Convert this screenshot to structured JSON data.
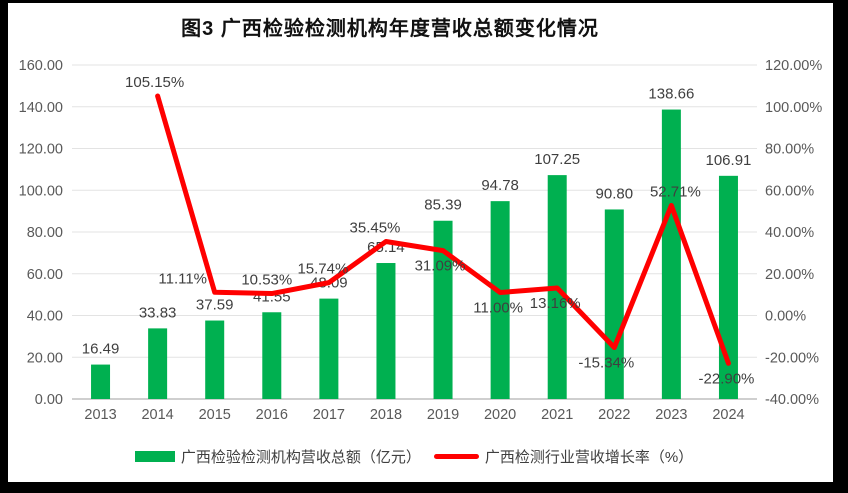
{
  "title": "图3 广西检验检测机构年度营收总额变化情况",
  "colors": {
    "bar": "#00B050",
    "line": "#FF0000",
    "grid": "#E3E3E3",
    "axis_line": "#BFBFBF",
    "tick_text": "#595959",
    "data_label": "#3F3F3F",
    "frame": "#000000",
    "background": "#FFFFFF"
  },
  "legend": {
    "items": [
      {
        "label": "广西检验检测机构营收总额（亿元）",
        "swatch": "bar"
      },
      {
        "label": "广西检测行业营收增长率（%）",
        "swatch": "line"
      }
    ]
  },
  "chart_data": {
    "type": "combo",
    "title": "图3 广西检验检测机构年度营收总额变化情况",
    "categories": [
      "2013",
      "2014",
      "2015",
      "2016",
      "2017",
      "2018",
      "2019",
      "2020",
      "2021",
      "2022",
      "2023",
      "2024"
    ],
    "series": [
      {
        "name": "广西检验检测机构营收总额（亿元）",
        "type": "bar",
        "axis": "left",
        "color": "#00B050",
        "values": [
          16.49,
          33.83,
          37.59,
          41.55,
          48.09,
          65.14,
          85.39,
          94.78,
          107.25,
          90.8,
          138.66,
          106.91
        ],
        "labels": [
          "16.49",
          "33.83",
          "37.59",
          "41.55",
          "48.09",
          "65.14",
          "85.39",
          "94.78",
          "107.25",
          "90.80",
          "138.66",
          "106.91"
        ]
      },
      {
        "name": "广西检测行业营收增长率（%）",
        "type": "line",
        "axis": "right",
        "color": "#FF0000",
        "values": [
          null,
          105.15,
          11.11,
          10.53,
          15.74,
          35.45,
          31.09,
          11.0,
          13.16,
          -15.34,
          52.71,
          -22.9
        ],
        "labels": [
          null,
          "105.15%",
          "11.11%",
          "10.53%",
          "15.74%",
          "35.45%",
          "31.09%",
          "11.00%",
          "13.16%",
          "-15.34%",
          "52.71%",
          "-22.90%"
        ],
        "label_side": [
          null,
          "above",
          "above",
          "above",
          "above",
          "above",
          "below",
          "below",
          "below",
          "below",
          "above",
          "below"
        ],
        "label_dx": [
          0,
          -3,
          -32,
          -5,
          -6,
          -11,
          -3,
          -2,
          -2,
          -8,
          4,
          -2
        ]
      }
    ],
    "left_axis": {
      "min": 0,
      "max": 160,
      "step": 20,
      "ticks": [
        "0.00",
        "20.00",
        "40.00",
        "60.00",
        "80.00",
        "100.00",
        "120.00",
        "140.00",
        "160.00"
      ]
    },
    "right_axis": {
      "min": -40,
      "max": 120,
      "step": 20,
      "ticks": [
        "-40.00%",
        "-20.00%",
        "0.00%",
        "20.00%",
        "40.00%",
        "60.00%",
        "80.00%",
        "100.00%",
        "120.00%"
      ]
    },
    "grid": "horizontal",
    "legend_position": "bottom"
  }
}
